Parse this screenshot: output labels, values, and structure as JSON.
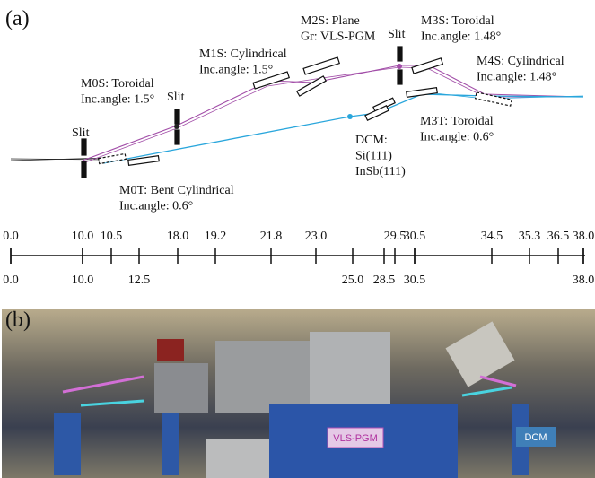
{
  "panel_a": {
    "label": "(a)",
    "components": [
      {
        "lines": [
          "M0S: Toroidal",
          "Inc.angle: 1.5°"
        ]
      },
      {
        "lines": [
          "M1S: Cylindrical",
          "Inc.angle: 1.5°"
        ]
      },
      {
        "lines": [
          "M2S: Plane",
          "Gr: VLS-PGM"
        ]
      },
      {
        "lines": [
          "M3S: Toroidal",
          "Inc.angle: 1.48°"
        ]
      },
      {
        "lines": [
          "M4S: Cylindrical",
          "Inc.angle: 1.48°"
        ]
      },
      {
        "lines": [
          "M3T: Toroidal",
          "Inc.angle: 0.6°"
        ]
      },
      {
        "lines": [
          "DCM:",
          "Si(111)",
          "InSb(111)"
        ]
      },
      {
        "lines": [
          "M0T: Bent Cylindrical",
          "Inc.angle: 0.6°"
        ]
      }
    ],
    "slits": [
      "Slit",
      "Slit",
      "Slit"
    ],
    "scale": {
      "top": [
        "0.0",
        "10.0",
        "10.5",
        "18.0",
        "19.2",
        "21.8",
        "23.0",
        "29.5",
        "30.5",
        "34.5",
        "35.3",
        "36.5",
        "38.0"
      ],
      "bottom": [
        "0.0",
        "10.0",
        "12.5",
        "25.0",
        "28.5",
        "30.5",
        "38.0"
      ]
    }
  },
  "panel_b": {
    "label": "(b)",
    "tags": [
      "VLS-PGM",
      "DCM"
    ]
  }
}
